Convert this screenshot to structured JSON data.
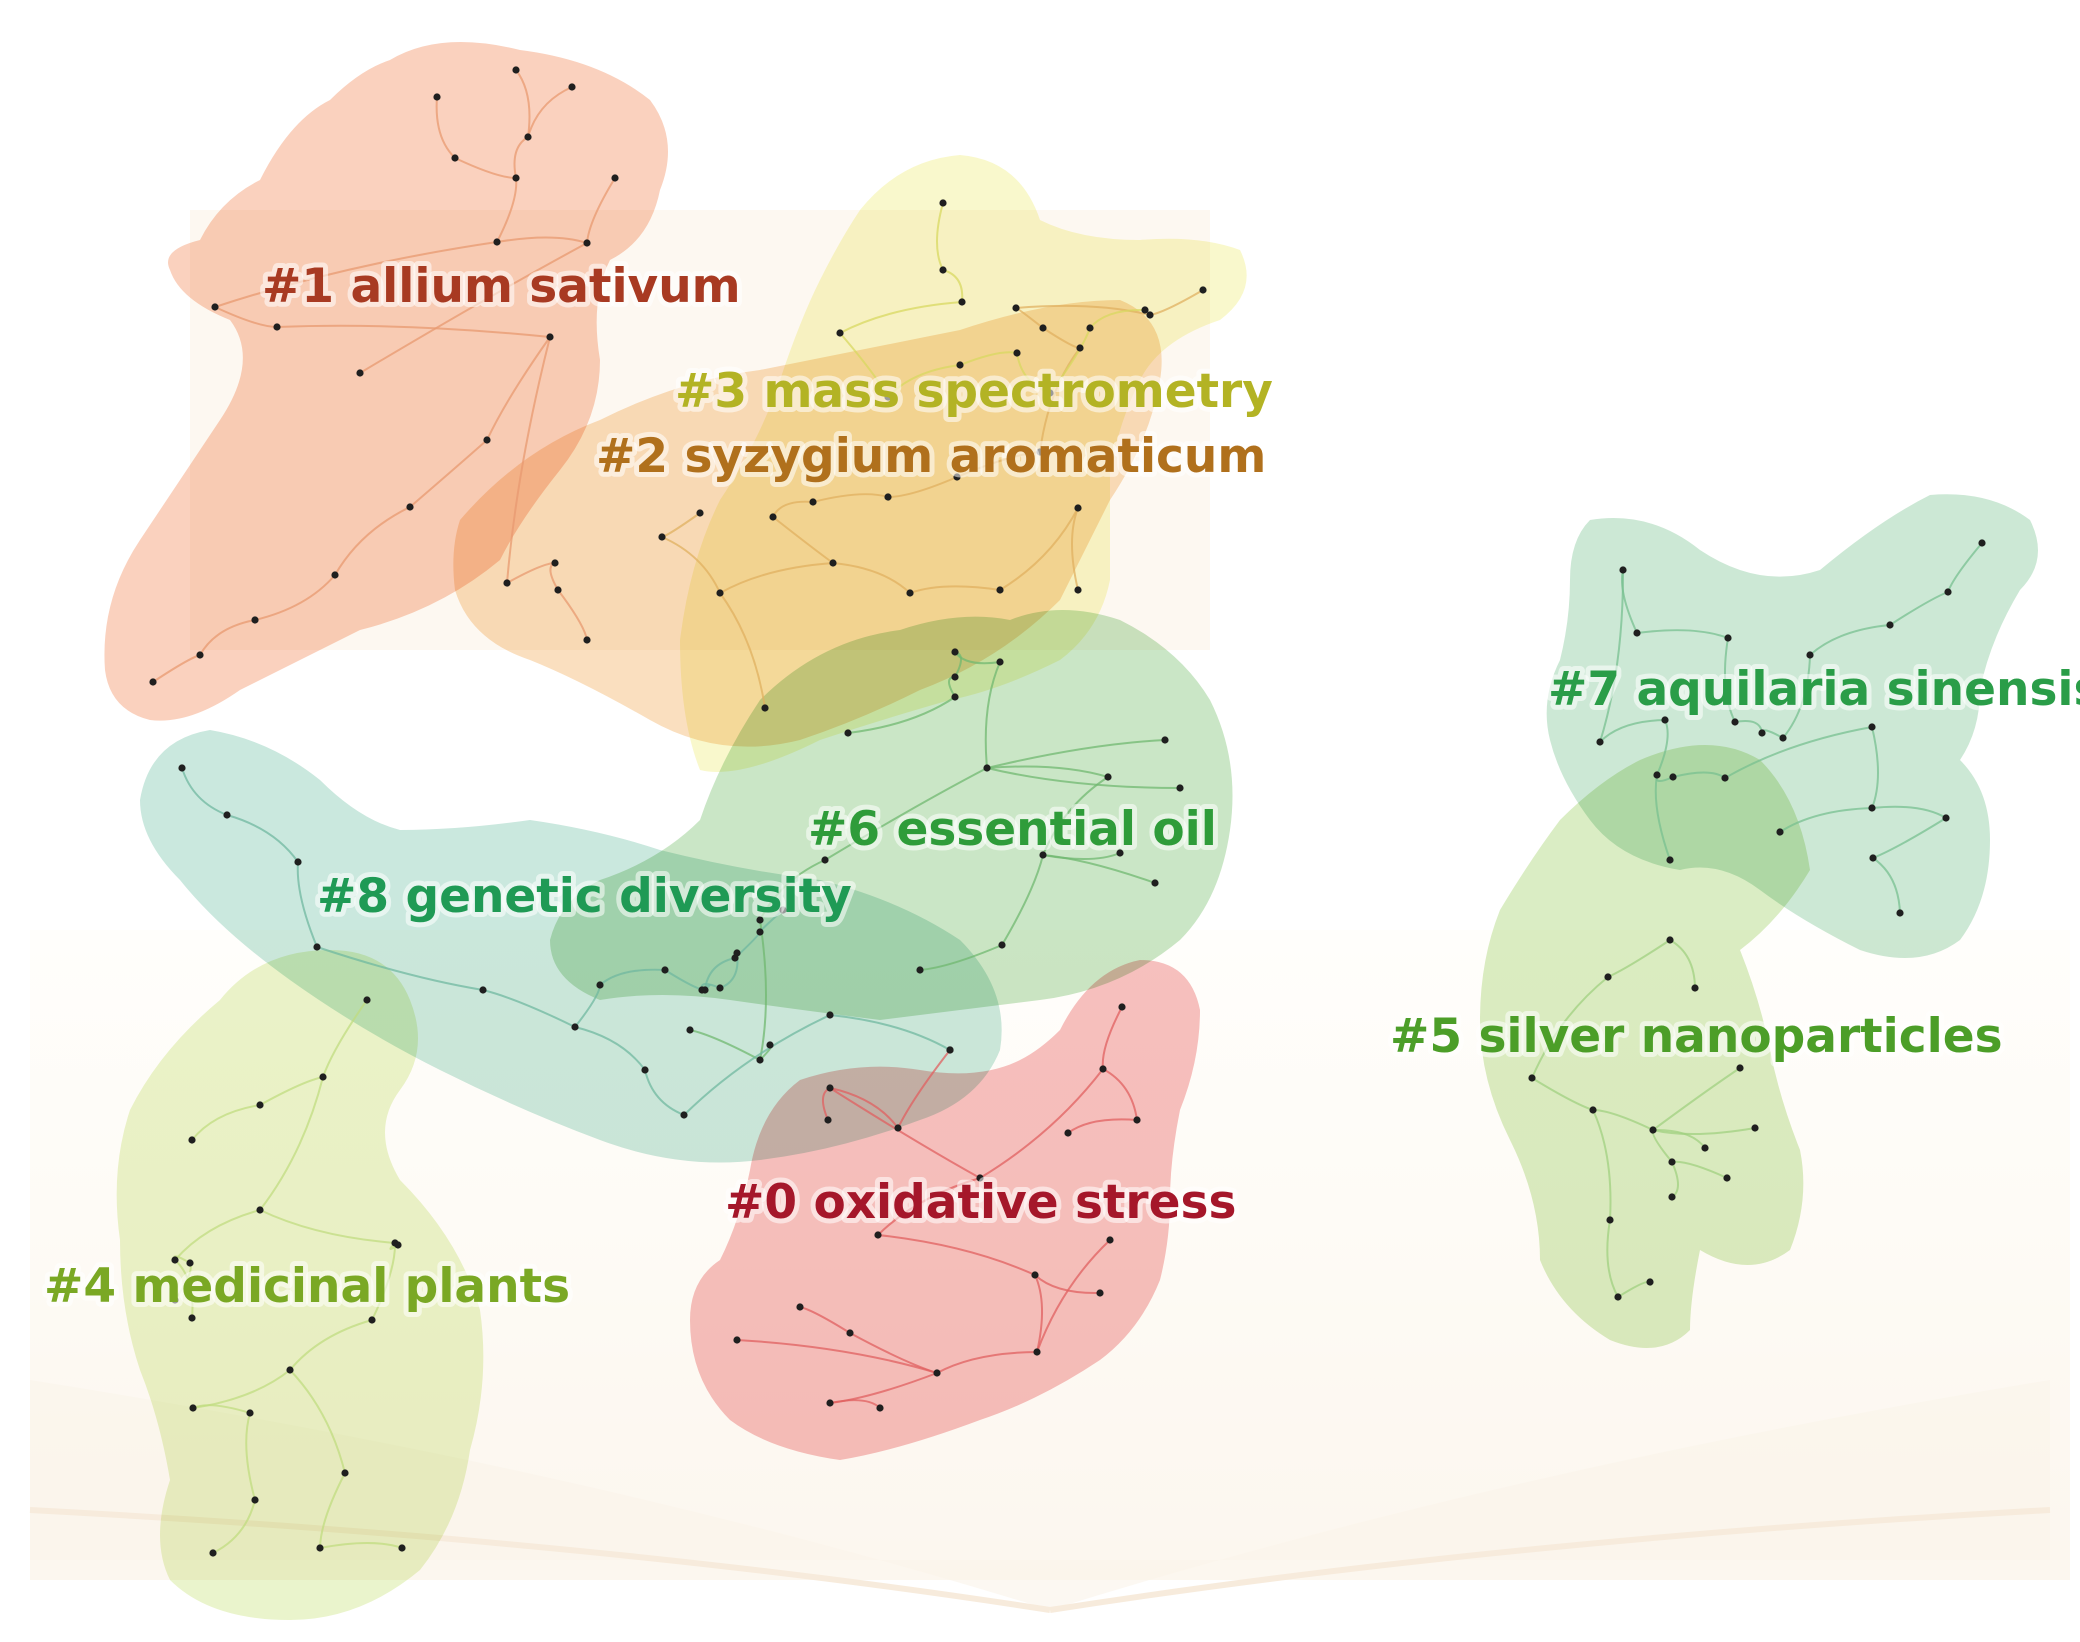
{
  "clusters": [
    {
      "id": "c0",
      "label": "#0 oxidative stress",
      "color": "#a5172a",
      "fill": "#f08a8a"
    },
    {
      "id": "c1",
      "label": "#1 allium sativum",
      "color": "#a83a22",
      "fill": "#f6ae8c"
    },
    {
      "id": "c2",
      "label": "#2 syzygium aromaticum",
      "color": "#b6731c",
      "fill": "#f5c98a"
    },
    {
      "id": "c3",
      "label": "#3 mass spectrometry",
      "color": "#b3b324",
      "fill": "#f0f09a"
    },
    {
      "id": "c4",
      "label": "#4 medicinal plants",
      "color": "#7aa824",
      "fill": "#d8eca0"
    },
    {
      "id": "c5",
      "label": "#5 silver nanoparticles",
      "color": "#4c9e28",
      "fill": "#bde0a0"
    },
    {
      "id": "c6",
      "label": "#6 essential oil",
      "color": "#2f9c3a",
      "fill": "#9cd39c"
    },
    {
      "id": "c7",
      "label": "#7 aquilaria sinensis",
      "color": "#2a9d48",
      "fill": "#a8d9b4"
    },
    {
      "id": "c8",
      "label": "#8 genetic diversity",
      "color": "#1f9a55",
      "fill": "#a3d6c6"
    }
  ]
}
